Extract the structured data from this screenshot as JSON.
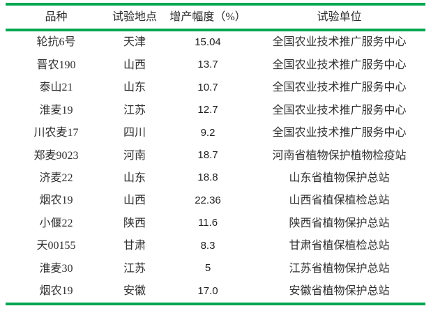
{
  "colors": {
    "rule_green": "#00a651",
    "text": "#2f2f2f"
  },
  "table": {
    "columns": [
      "品种",
      "试验地点",
      "增产幅度（%）",
      "试验单位"
    ],
    "rows": [
      {
        "variety": "轮抗6号",
        "location": "天津",
        "increase": "15.04",
        "unit": "全国农业技术推广服务中心"
      },
      {
        "variety": "晋农190",
        "location": "山西",
        "increase": "13.7",
        "unit": "全国农业技术推广服务中心"
      },
      {
        "variety": "泰山21",
        "location": "山东",
        "increase": "10.7",
        "unit": "全国农业技术推广服务中心"
      },
      {
        "variety": "淮麦19",
        "location": "江苏",
        "increase": "12.7",
        "unit": "全国农业技术推广服务中心"
      },
      {
        "variety": "川农麦17",
        "location": "四川",
        "increase": "9.2",
        "unit": "全国农业技术推广服务中心"
      },
      {
        "variety": "郑麦9023",
        "location": "河南",
        "increase": "18.7",
        "unit": "河南省植物保护植物检疫站"
      },
      {
        "variety": "济麦22",
        "location": "山东",
        "increase": "18.8",
        "unit": "山东省植物保护总站"
      },
      {
        "variety": "烟农19",
        "location": "山西",
        "increase": "22.36",
        "unit": "山西省植保植检总站"
      },
      {
        "variety": "小偃22",
        "location": "陕西",
        "increase": "11.6",
        "unit": "陕西省植物保护总站"
      },
      {
        "variety": "天00155",
        "location": "甘肃",
        "increase": "8.3",
        "unit": "甘肃省植保植检总站"
      },
      {
        "variety": "淮麦30",
        "location": "江苏",
        "increase": "5",
        "unit": "江苏省植物保护总站"
      },
      {
        "variety": "烟农19",
        "location": "安徽",
        "increase": "17.0",
        "unit": "安徽省植物保护总站"
      }
    ]
  }
}
